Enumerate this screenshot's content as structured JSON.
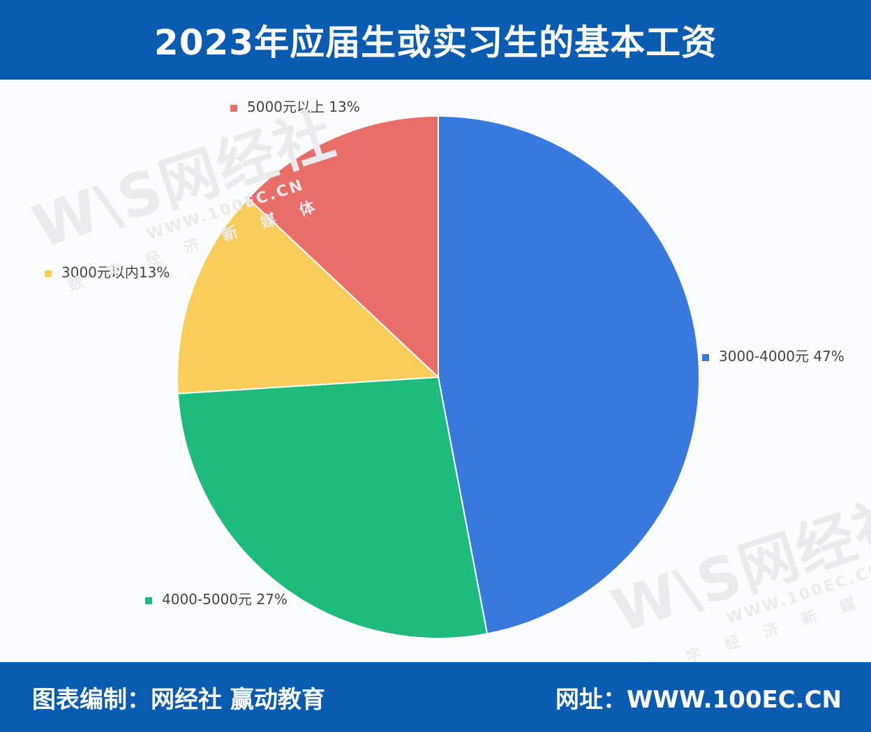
{
  "header": {
    "title": "2023年应届生或实习生的基本工资"
  },
  "footer": {
    "left_text": "图表编制：网经社 赢动教育",
    "right_text": "网址：WWW.100EC.CN"
  },
  "watermark": {
    "logo": "W\\S网经社",
    "url": "WWW.100EC.CN",
    "subtitle": "数字经济新媒体"
  },
  "colors": {
    "header_bg": "#0a5bb2",
    "slice_blue": "#3779dc",
    "slice_green": "#1dbc7d",
    "slice_yellow": "#f9cd5a",
    "slice_red": "#e86e67"
  },
  "chart_data": {
    "type": "pie",
    "title": "2023年应届生或实习生的基本工资",
    "slices": [
      {
        "name": "3000-4000元 47%",
        "value": 47,
        "color": "#3779dc"
      },
      {
        "name": "4000-5000元 27%",
        "value": 27,
        "color": "#1dbc7d"
      },
      {
        "name": "3000元以内13%",
        "value": 13,
        "color": "#f9cd5a"
      },
      {
        "name": "5000元以上 13%",
        "value": 13,
        "color": "#e86e67"
      }
    ],
    "start_angle_deg": 0,
    "direction": "clockwise"
  }
}
